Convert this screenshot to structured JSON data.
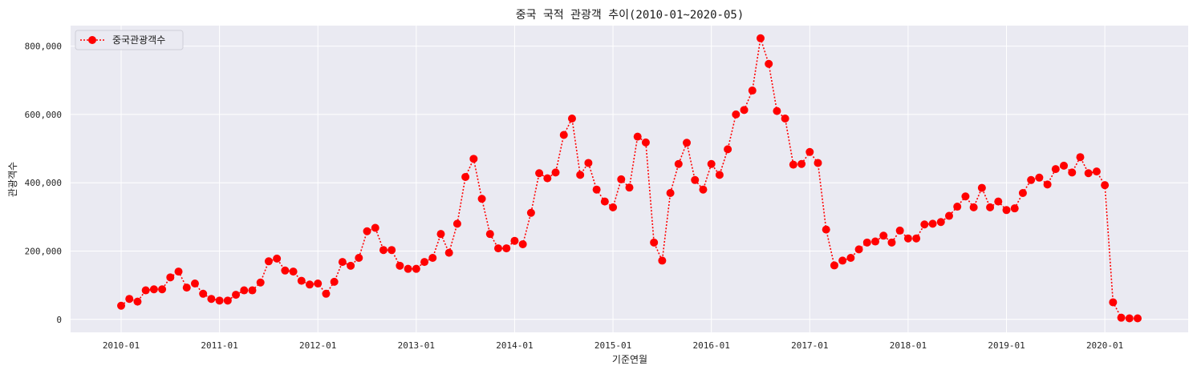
{
  "chart_data": {
    "type": "line",
    "title": "중국 국적 관광객 추이(2010-01~2020-05)",
    "xlabel": "기준연월",
    "ylabel": "관광객수",
    "x_start": "2010-01",
    "x_end": "2020-05",
    "x_ticks": [
      "2010-01",
      "2011-01",
      "2012-01",
      "2013-01",
      "2014-01",
      "2015-01",
      "2016-01",
      "2017-01",
      "2018-01",
      "2019-01",
      "2020-01"
    ],
    "y_ticks": [
      0,
      200000,
      400000,
      600000,
      800000
    ],
    "y_tick_labels": [
      "0",
      "200,000",
      "400,000",
      "600,000",
      "800,000"
    ],
    "ylim": [
      -38000,
      860000
    ],
    "grid": true,
    "legend": "top-left",
    "series": [
      {
        "name": "중국관광객수",
        "color": "#ff0000",
        "line_style": "dotted",
        "marker": "circle",
        "values": [
          40000,
          60000,
          52000,
          85000,
          88000,
          88000,
          123000,
          140000,
          93000,
          105000,
          75000,
          60000,
          55000,
          55000,
          72000,
          85000,
          85000,
          108000,
          170000,
          178000,
          143000,
          140000,
          113000,
          102000,
          105000,
          75000,
          110000,
          168000,
          157000,
          180000,
          258000,
          268000,
          203000,
          203000,
          157000,
          148000,
          148000,
          168000,
          180000,
          250000,
          195000,
          280000,
          417000,
          470000,
          353000,
          250000,
          208000,
          208000,
          230000,
          220000,
          312000,
          428000,
          413000,
          430000,
          540000,
          588000,
          423000,
          458000,
          380000,
          345000,
          328000,
          410000,
          386000,
          535000,
          518000,
          225000,
          172000,
          370000,
          455000,
          517000,
          408000,
          380000,
          455000,
          423000,
          498000,
          600000,
          613000,
          670000,
          823000,
          748000,
          610000,
          588000,
          453000,
          455000,
          490000,
          458000,
          263000,
          158000,
          172000,
          180000,
          205000,
          225000,
          228000,
          245000,
          225000,
          260000,
          237000,
          237000,
          278000,
          280000,
          285000,
          303000,
          330000,
          360000,
          328000,
          385000,
          328000,
          345000,
          320000,
          325000,
          370000,
          408000,
          415000,
          395000,
          440000,
          450000,
          430000,
          475000,
          428000,
          433000,
          393000,
          50000,
          5000,
          3000,
          3000
        ]
      }
    ]
  }
}
